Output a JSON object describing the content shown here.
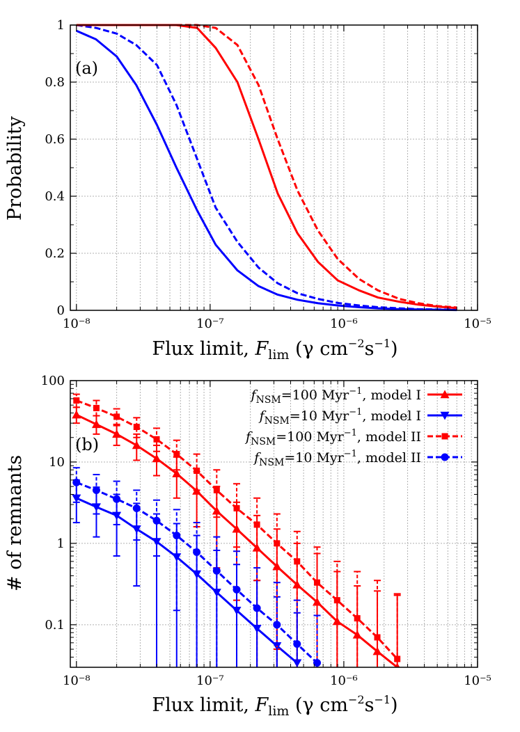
{
  "chart_data": [
    {
      "type": "line",
      "panel_label": "(a)",
      "xlabel": "Flux limit, F_lim (γ cm⁻²s⁻¹)",
      "ylabel": "Probability",
      "xscale": "log",
      "xlim": [
        9e-09,
        1e-05
      ],
      "ylim": [
        0,
        1
      ],
      "x_ticks": [
        "10⁻⁸",
        "10⁻⁷",
        "10⁻⁶",
        "10⁻⁵"
      ],
      "y_ticks": [
        "0",
        "0.2",
        "0.4",
        "0.6",
        "0.8",
        "1"
      ],
      "grid": true,
      "series": [
        {
          "color": "#0000ff",
          "style": "solid",
          "x": [
            1e-08,
            1.4e-08,
            2e-08,
            2.8e-08,
            4e-08,
            5.6e-08,
            8e-08,
            1.1e-07,
            1.6e-07,
            2.3e-07,
            3.2e-07,
            4.5e-07,
            6.4e-07,
            9e-07,
            1.3e-06,
            1.8e-06,
            2.6e-06,
            3.6e-06,
            5e-06,
            7e-06
          ],
          "y": [
            0.98,
            0.95,
            0.89,
            0.79,
            0.65,
            0.5,
            0.35,
            0.23,
            0.14,
            0.085,
            0.055,
            0.037,
            0.025,
            0.017,
            0.011,
            0.007,
            0.004,
            0.003,
            0.002,
            0.001
          ]
        },
        {
          "color": "#0000ff",
          "style": "dashed",
          "x": [
            1e-08,
            1.4e-08,
            2e-08,
            2.8e-08,
            4e-08,
            5.6e-08,
            8e-08,
            1.1e-07,
            1.6e-07,
            2.3e-07,
            3.2e-07,
            4.5e-07,
            6.4e-07,
            9e-07,
            1.3e-06,
            1.8e-06,
            2.6e-06,
            3.6e-06,
            5e-06,
            7e-06
          ],
          "y": [
            1.0,
            0.99,
            0.97,
            0.93,
            0.86,
            0.72,
            0.53,
            0.36,
            0.24,
            0.15,
            0.095,
            0.06,
            0.04,
            0.026,
            0.017,
            0.011,
            0.007,
            0.004,
            0.003,
            0.002
          ]
        },
        {
          "color": "#ff0000",
          "style": "solid",
          "x": [
            1e-08,
            1.4e-08,
            2e-08,
            2.8e-08,
            4e-08,
            5.6e-08,
            8e-08,
            1.1e-07,
            1.6e-07,
            2.3e-07,
            3.2e-07,
            4.5e-07,
            6.4e-07,
            9e-07,
            1.3e-06,
            1.8e-06,
            2.6e-06,
            3.6e-06,
            5e-06,
            7e-06
          ],
          "y": [
            1.0,
            1.0,
            1.0,
            1.0,
            1.0,
            1.0,
            0.99,
            0.92,
            0.8,
            0.6,
            0.41,
            0.27,
            0.17,
            0.105,
            0.07,
            0.045,
            0.03,
            0.02,
            0.013,
            0.008
          ]
        },
        {
          "color": "#ff0000",
          "style": "dashed",
          "x": [
            1e-08,
            1.4e-08,
            2e-08,
            2.8e-08,
            4e-08,
            5.6e-08,
            8e-08,
            1.1e-07,
            1.6e-07,
            2.3e-07,
            3.2e-07,
            4.5e-07,
            6.4e-07,
            9e-07,
            1.3e-06,
            1.8e-06,
            2.6e-06,
            3.6e-06,
            5e-06,
            7e-06
          ],
          "y": [
            1.0,
            1.0,
            1.0,
            1.0,
            1.0,
            1.0,
            1.0,
            0.99,
            0.93,
            0.79,
            0.6,
            0.42,
            0.28,
            0.18,
            0.11,
            0.07,
            0.04,
            0.025,
            0.015,
            0.01
          ]
        }
      ]
    },
    {
      "type": "line",
      "panel_label": "(b)",
      "xlabel": "Flux limit, F_lim (γ cm⁻²s⁻¹)",
      "ylabel": "# of remnants",
      "xscale": "log",
      "yscale": "log",
      "xlim": [
        9e-09,
        1e-05
      ],
      "ylim": [
        0.03,
        100
      ],
      "x_ticks": [
        "10⁻⁸",
        "10⁻⁷",
        "10⁻⁶",
        "10⁻⁵"
      ],
      "y_ticks": [
        "0.1",
        "1",
        "10",
        "100"
      ],
      "grid": true,
      "legend_position": "top-right",
      "series": [
        {
          "name": "f_NSM=100 Myr⁻¹, model I",
          "color": "#ff0000",
          "style": "solid",
          "marker": "triangle-up",
          "x": [
            1e-08,
            1.41e-08,
            2e-08,
            2.82e-08,
            3.98e-08,
            5.62e-08,
            7.94e-08,
            1.12e-07,
            1.58e-07,
            2.24e-07,
            3.16e-07,
            4.47e-07,
            6.31e-07,
            8.91e-07,
            1.26e-06,
            1.78e-06,
            2.51e-06
          ],
          "y": [
            38,
            29,
            22,
            16,
            11,
            7.2,
            4.4,
            2.5,
            1.5,
            0.88,
            0.52,
            0.31,
            0.19,
            0.11,
            0.075,
            0.047,
            0.03
          ],
          "err_lo": [
            30,
            22,
            16,
            10.5,
            6.8,
            3.6,
            1.6,
            0.5,
            0.2,
            0.03,
            0.03,
            0.03,
            0.03,
            0.03,
            0.03,
            0.03,
            0.03
          ],
          "err_hi": [
            47,
            37,
            29,
            22,
            16,
            11.5,
            7.6,
            5.0,
            3.2,
            2.2,
            1.5,
            1.0,
            0.75,
            0.45,
            0.3,
            0.26,
            0.23
          ]
        },
        {
          "name": "f_NSM=10 Myr⁻¹, model I",
          "color": "#0000ff",
          "style": "solid",
          "marker": "triangle-down",
          "x": [
            1e-08,
            1.41e-08,
            2e-08,
            2.82e-08,
            3.98e-08,
            5.62e-08,
            7.94e-08,
            1.12e-07,
            1.58e-07,
            2.24e-07,
            3.16e-07,
            4.47e-07
          ],
          "y": [
            3.6,
            2.8,
            2.2,
            1.5,
            1.05,
            0.68,
            0.42,
            0.25,
            0.15,
            0.09,
            0.055,
            0.034
          ],
          "err_lo": [
            1.8,
            1.2,
            0.7,
            0.3,
            0.03,
            0.03,
            0.03,
            0.03,
            0.03,
            0.03,
            0.03,
            0.03
          ],
          "err_hi": [
            6.0,
            4.9,
            4.0,
            3.1,
            2.3,
            1.75,
            1.25,
            0.82,
            0.55,
            0.35,
            0.22,
            0.14
          ]
        },
        {
          "name": "f_NSM=100 Myr⁻¹, model II",
          "color": "#ff0000",
          "style": "dashed",
          "marker": "square",
          "x": [
            1e-08,
            1.41e-08,
            2e-08,
            2.82e-08,
            3.98e-08,
            5.62e-08,
            7.94e-08,
            1.12e-07,
            1.58e-07,
            2.24e-07,
            3.16e-07,
            4.47e-07,
            6.31e-07,
            8.91e-07,
            1.26e-06,
            1.78e-06,
            2.51e-06
          ],
          "y": [
            57,
            46,
            36,
            27,
            19,
            12.5,
            7.8,
            4.5,
            2.7,
            1.7,
            1.0,
            0.6,
            0.33,
            0.2,
            0.12,
            0.07,
            0.038
          ],
          "err_lo": [
            47,
            37,
            28,
            20,
            13.5,
            8.0,
            4.5,
            2.1,
            0.9,
            0.35,
            0.05,
            0.03,
            0.03,
            0.03,
            0.03,
            0.03,
            0.03
          ],
          "err_hi": [
            68,
            57,
            45,
            35,
            26,
            18.5,
            12.5,
            8.0,
            5.4,
            3.6,
            2.3,
            1.4,
            0.9,
            0.6,
            0.45,
            0.35,
            0.24
          ]
        },
        {
          "name": "f_NSM=10 Myr⁻¹, model II",
          "color": "#0000ff",
          "style": "dashed",
          "marker": "circle",
          "x": [
            1e-08,
            1.41e-08,
            2e-08,
            2.82e-08,
            3.98e-08,
            5.62e-08,
            7.94e-08,
            1.12e-07,
            1.58e-07,
            2.24e-07,
            3.16e-07,
            4.47e-07,
            6.31e-07
          ],
          "y": [
            5.6,
            4.5,
            3.5,
            2.7,
            1.9,
            1.25,
            0.78,
            0.46,
            0.27,
            0.16,
            0.1,
            0.058,
            0.034
          ],
          "err_lo": [
            3.2,
            2.3,
            1.7,
            1.1,
            0.7,
            0.15,
            0.03,
            0.03,
            0.03,
            0.03,
            0.03,
            0.03,
            0.03
          ],
          "err_hi": [
            8.5,
            7.0,
            5.8,
            4.5,
            3.4,
            2.6,
            1.8,
            1.2,
            0.8,
            0.5,
            0.33,
            0.2,
            0.13
          ]
        }
      ]
    }
  ],
  "legend": {
    "items": [
      {
        "prefix": "f",
        "sub": "NSM",
        "mid": "=100 Myr",
        "sup": "−1",
        "suffix": ", model I"
      },
      {
        "prefix": "f",
        "sub": "NSM",
        "mid": "=10 Myr",
        "sup": "−1",
        "suffix": ", model I"
      },
      {
        "prefix": "f",
        "sub": "NSM",
        "mid": "=100 Myr",
        "sup": "−1",
        "suffix": ", model II"
      },
      {
        "prefix": "f",
        "sub": "NSM",
        "mid": "=10 Myr",
        "sup": "−1",
        "suffix": ", model II"
      }
    ]
  },
  "labels": {
    "panel_a": "(a)",
    "panel_b": "(b)",
    "ylabel_a": "Probability",
    "ylabel_b": "# of remnants",
    "xlabel_main": "Flux limit, ",
    "xlabel_var": "F",
    "xlabel_sub": "lim",
    "xlabel_unit_open": " (γ cm",
    "xlabel_unit_exp1": "−2",
    "xlabel_unit_mid": "s",
    "xlabel_unit_exp2": "−1",
    "xlabel_unit_close": ")"
  },
  "colors": {
    "red": "#ff0000",
    "blue": "#0000ff",
    "grid": "#b0b0b0"
  }
}
